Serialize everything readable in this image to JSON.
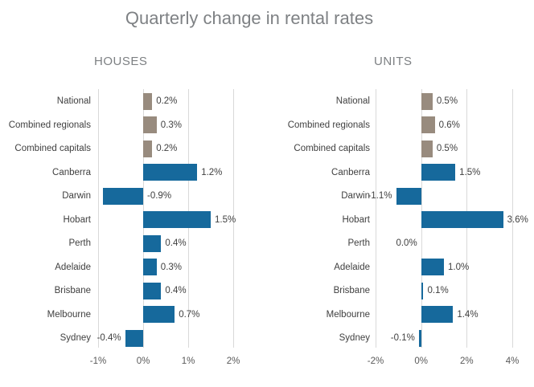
{
  "title": "Quarterly change in rental rates",
  "colors": {
    "bar_summary": "#988b7e",
    "bar_city": "#16699c",
    "gridline": "#d9d9d9",
    "title_text": "#7e8184",
    "label_text": "#404040",
    "tick_text": "#595959"
  },
  "chart_data": [
    {
      "type": "bar",
      "orientation": "horizontal",
      "title": "HOUSES",
      "categories": [
        "National",
        "Combined regionals",
        "Combined capitals",
        "Canberra",
        "Darwin",
        "Hobart",
        "Perth",
        "Adelaide",
        "Brisbane",
        "Melbourne",
        "Sydney"
      ],
      "values": [
        0.2,
        0.3,
        0.2,
        1.2,
        -0.9,
        1.5,
        0.4,
        0.3,
        0.4,
        0.7,
        -0.4
      ],
      "value_labels": [
        "0.2%",
        "0.3%",
        "0.2%",
        "1.2%",
        "-0.9%",
        "1.5%",
        "0.4%",
        "0.3%",
        "0.4%",
        "0.7%",
        "-0.4%"
      ],
      "bar_groups": [
        "summary",
        "summary",
        "summary",
        "city",
        "city",
        "city",
        "city",
        "city",
        "city",
        "city",
        "city"
      ],
      "label_placement": [
        "right",
        "right",
        "right",
        "right",
        "zero_right",
        "right",
        "right",
        "right",
        "right",
        "right",
        "left"
      ],
      "xlim": [
        -1,
        2
      ],
      "xticks": [
        -1,
        0,
        1,
        2
      ],
      "xtick_labels": [
        "-1%",
        "0%",
        "1%",
        "2%"
      ],
      "grid": true,
      "legend": "none"
    },
    {
      "type": "bar",
      "orientation": "horizontal",
      "title": "UNITS",
      "categories": [
        "National",
        "Combined regionals",
        "Combined capitals",
        "Canberra",
        "Darwin",
        "Hobart",
        "Perth",
        "Adelaide",
        "Brisbane",
        "Melbourne",
        "Sydney"
      ],
      "values": [
        0.5,
        0.6,
        0.5,
        1.5,
        -1.1,
        3.6,
        0.0,
        1.0,
        0.1,
        1.4,
        -0.1
      ],
      "value_labels": [
        "0.5%",
        "0.6%",
        "0.5%",
        "1.5%",
        "-1.1%",
        "3.6%",
        "0.0%",
        "1.0%",
        "0.1%",
        "1.4%",
        "-0.1%"
      ],
      "bar_groups": [
        "summary",
        "summary",
        "summary",
        "city",
        "city",
        "city",
        "city",
        "city",
        "city",
        "city",
        "city"
      ],
      "label_placement": [
        "right",
        "right",
        "right",
        "right",
        "left",
        "right",
        "zero_left",
        "right",
        "right",
        "right",
        "left"
      ],
      "xlim": [
        -2,
        4
      ],
      "xticks": [
        -2,
        0,
        2,
        4
      ],
      "xtick_labels": [
        "-2%",
        "0%",
        "2%",
        "4%"
      ],
      "grid": true,
      "legend": "none"
    }
  ]
}
